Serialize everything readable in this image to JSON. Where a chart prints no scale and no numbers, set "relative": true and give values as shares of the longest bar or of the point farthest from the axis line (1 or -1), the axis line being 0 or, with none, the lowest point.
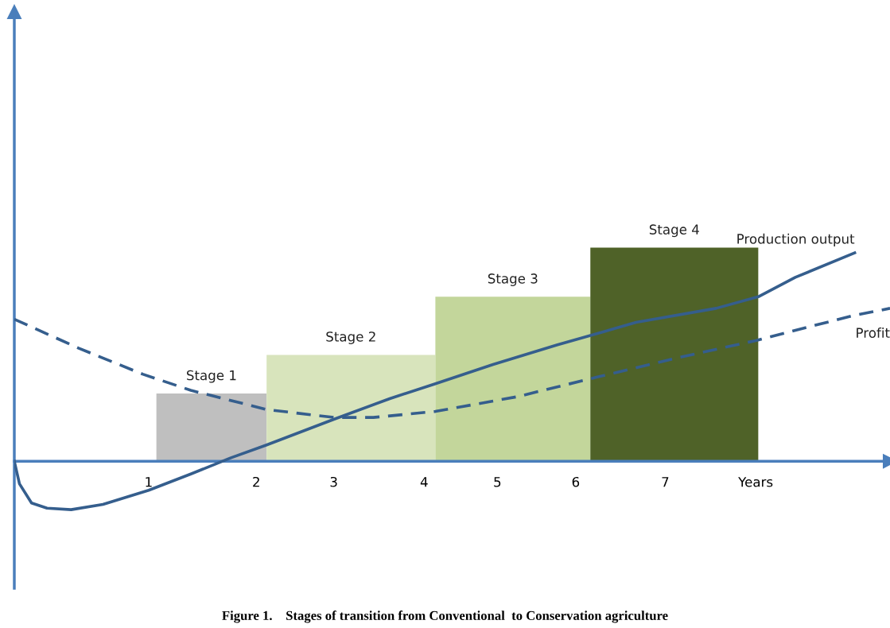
{
  "chart_data": {
    "type": "line",
    "relative": true,
    "title": "Figure 1.    Stages of transition from Conventional  to Conservation agriculture",
    "xlim": [
      -0.56,
      9.61
    ],
    "xticks": [
      {
        "value": 1.0,
        "label": "1"
      },
      {
        "value": 2.25,
        "label": "2"
      },
      {
        "value": 3.15,
        "label": "3"
      },
      {
        "value": 4.2,
        "label": "4"
      },
      {
        "value": 5.05,
        "label": "5"
      },
      {
        "value": 5.96,
        "label": "6"
      },
      {
        "value": 7.0,
        "label": "7"
      },
      {
        "value": 8.05,
        "label": "Years"
      }
    ],
    "tick_labels": "x",
    "grid": false,
    "legend": false,
    "series": [
      {
        "type": "histogram",
        "bins": [
          1.09,
          2.37,
          4.33,
          6.13,
          8.08
        ],
        "values": [
          0.317,
          0.498,
          0.77,
          1.0
        ],
        "colors": [
          "#bfbfbf",
          "#d8e4bc",
          "#c3d69b",
          "#4f6228"
        ]
      },
      {
        "name": "Production output",
        "color": "#355e8d",
        "line_style": "solid",
        "x": [
          -0.56,
          -0.5,
          -0.36,
          -0.18,
          0.1,
          0.47,
          1.0,
          1.49,
          1.95,
          2.37,
          3.15,
          3.8,
          4.33,
          5.0,
          5.74,
          6.66,
          7.59,
          8.08,
          8.51,
          9.2
        ],
        "values": [
          0,
          -0.106,
          -0.196,
          -0.22,
          -0.227,
          -0.202,
          -0.136,
          -0.06,
          0.015,
          0.076,
          0.196,
          0.293,
          0.363,
          0.453,
          0.544,
          0.65,
          0.716,
          0.77,
          0.861,
          0.976
        ]
      },
      {
        "name": "Profit",
        "color": "#355e8d",
        "line_style": "dashed",
        "x": [
          -0.56,
          0.19,
          0.93,
          1.49,
          2.37,
          3.15,
          3.61,
          4.33,
          5.28,
          6.2,
          7.13,
          8.05,
          9.16,
          9.61
        ],
        "values": [
          0.665,
          0.529,
          0.408,
          0.332,
          0.242,
          0.205,
          0.205,
          0.233,
          0.302,
          0.393,
          0.483,
          0.565,
          0.68,
          0.716
        ]
      }
    ],
    "annotations": [
      {
        "text": "Stage 1",
        "x": 1.73,
        "y": 0.317
      },
      {
        "text": "Stage 2",
        "x": 3.35,
        "y": 0.498
      },
      {
        "text": "Stage 3",
        "x": 5.23,
        "y": 0.77
      },
      {
        "text": "Stage 4",
        "x": 7.105,
        "y": 1.0
      }
    ]
  }
}
